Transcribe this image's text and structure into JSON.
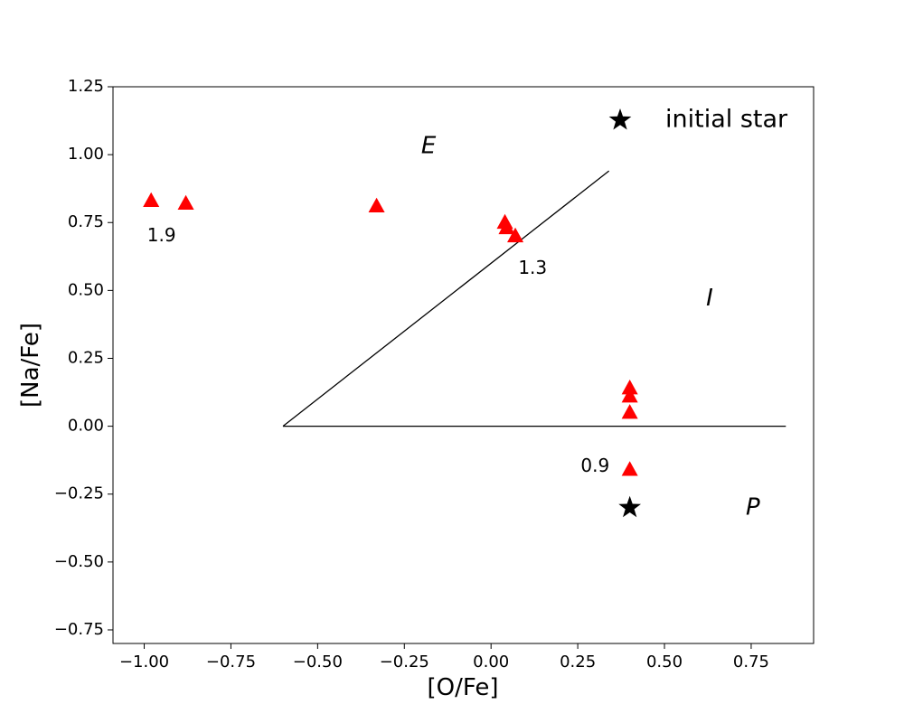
{
  "chart_data": {
    "type": "scatter",
    "title": "",
    "xlabel": "[O/Fe]",
    "ylabel": "[Na/Fe]",
    "xlim": [
      -1.09,
      0.93
    ],
    "ylim": [
      -0.8,
      1.25
    ],
    "xticks": [
      -1.0,
      -0.75,
      -0.5,
      -0.25,
      0.0,
      0.25,
      0.5,
      0.75
    ],
    "xtick_labels": [
      "−1.00",
      "−0.75",
      "−0.50",
      "−0.25",
      "0.00",
      "0.25",
      "0.50",
      "0.75"
    ],
    "yticks": [
      1.25,
      1.0,
      0.75,
      0.5,
      0.25,
      0.0,
      -0.25,
      -0.5,
      -0.75
    ],
    "ytick_labels": [
      "1.25",
      "1.00",
      "0.75",
      "0.50",
      "0.25",
      "0.00",
      "−0.25",
      "−0.50",
      "−0.75"
    ],
    "grid": false,
    "series": [
      {
        "marker": "triangle",
        "color": "#ff0000",
        "points": [
          {
            "x": -0.98,
            "y": 0.83
          },
          {
            "x": -0.88,
            "y": 0.82
          },
          {
            "x": -0.33,
            "y": 0.81
          },
          {
            "x": 0.04,
            "y": 0.75
          },
          {
            "x": 0.045,
            "y": 0.73
          },
          {
            "x": 0.07,
            "y": 0.7
          },
          {
            "x": 0.4,
            "y": 0.14
          },
          {
            "x": 0.4,
            "y": 0.11
          },
          {
            "x": 0.4,
            "y": 0.05
          },
          {
            "x": 0.4,
            "y": -0.16
          }
        ]
      },
      {
        "marker": "star",
        "color": "#000000",
        "points": [
          {
            "x": 0.4,
            "y": -0.3
          }
        ]
      }
    ],
    "lines": [
      {
        "x": [
          -0.6,
          0.34
        ],
        "y": [
          0.0,
          0.94
        ],
        "color": "#000000"
      },
      {
        "x": [
          -0.6,
          0.85
        ],
        "y": [
          0.0,
          0.0
        ],
        "color": "#000000"
      }
    ],
    "annotations": [
      {
        "text": "1.9",
        "x": -0.95,
        "y": 0.7
      },
      {
        "text": "1.3",
        "x": 0.12,
        "y": 0.58
      },
      {
        "text": "0.9",
        "x": 0.3,
        "y": -0.15
      }
    ],
    "regions": [
      {
        "text": "E",
        "x": -0.18,
        "y": 1.03
      },
      {
        "text": "I",
        "x": 0.63,
        "y": 0.47
      },
      {
        "text": "P",
        "x": 0.755,
        "y": -0.3
      }
    ],
    "legend": {
      "placement": "top-right",
      "entries": [
        {
          "label": "initial star",
          "marker": "star",
          "color": "#000000"
        }
      ]
    }
  }
}
